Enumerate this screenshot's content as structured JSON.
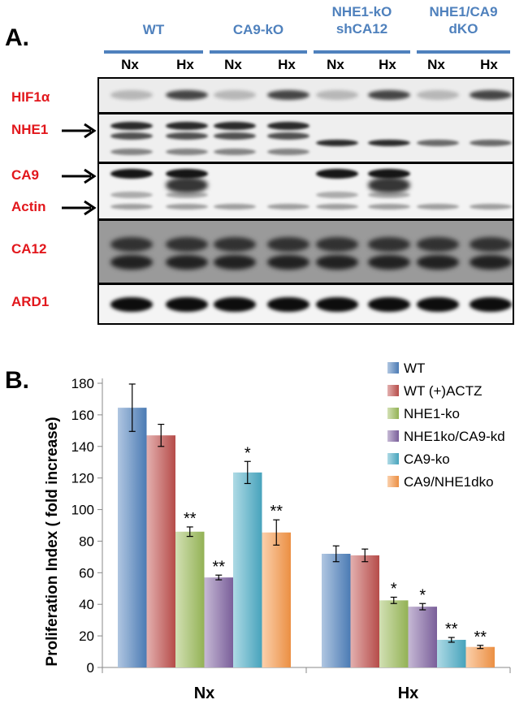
{
  "panel_a": {
    "letter": "A.",
    "groups": [
      {
        "lines": [
          "WT"
        ]
      },
      {
        "lines": [
          "CA9-kO"
        ]
      },
      {
        "lines": [
          "NHE1-kO",
          "shCA12"
        ]
      },
      {
        "lines": [
          "NHE1/CA9",
          "dKO"
        ]
      }
    ],
    "lanes": [
      "Nx",
      "Hx",
      "Nx",
      "Hx",
      "Nx",
      "Hx",
      "Nx",
      "Hx"
    ],
    "row_labels": {
      "hif1a": "HIF1α",
      "nhe1": "NHE1",
      "ca9": "CA9",
      "actin": "Actin",
      "ca12": "CA12",
      "ard1": "ARD1"
    },
    "colors": {
      "group_label": "#4f81bd",
      "row_label": "#e2171c"
    }
  },
  "panel_b": {
    "letter": "B."
  },
  "chart_data": {
    "type": "bar",
    "title": "",
    "xlabel": "",
    "ylabel": "Proliferation Index ( fold increase)",
    "ylim": [
      0,
      180
    ],
    "yticks": [
      0,
      20,
      40,
      60,
      80,
      100,
      120,
      140,
      160,
      180
    ],
    "categories": [
      "Nx",
      "Hx"
    ],
    "legend_position": "right",
    "grid": false,
    "series": [
      {
        "name": "WT",
        "color": "#4f81bd",
        "values": [
          164.5,
          72
        ],
        "errors": [
          15,
          5
        ],
        "marks": [
          "",
          ""
        ]
      },
      {
        "name": "WT (+)ACTZ",
        "color": "#c0504d",
        "values": [
          147,
          71
        ],
        "errors": [
          7,
          4
        ],
        "marks": [
          "",
          ""
        ]
      },
      {
        "name": "NHE1-ko",
        "color": "#9bbb59",
        "values": [
          86,
          42.5
        ],
        "errors": [
          3,
          2
        ],
        "marks": [
          "**",
          "*"
        ]
      },
      {
        "name": "NHE1ko/CA9-kd",
        "color": "#8064a2",
        "values": [
          57,
          38.5
        ],
        "errors": [
          1.5,
          2
        ],
        "marks": [
          "**",
          "*"
        ]
      },
      {
        "name": "CA9-ko",
        "color": "#4bacc6",
        "values": [
          123.5,
          17.5
        ],
        "errors": [
          7,
          1.5
        ],
        "marks": [
          "*",
          "**"
        ]
      },
      {
        "name": "CA9/NHE1dko",
        "color": "#f79646",
        "values": [
          85.5,
          13
        ],
        "errors": [
          8,
          1
        ],
        "marks": [
          "**",
          "**"
        ]
      }
    ]
  }
}
